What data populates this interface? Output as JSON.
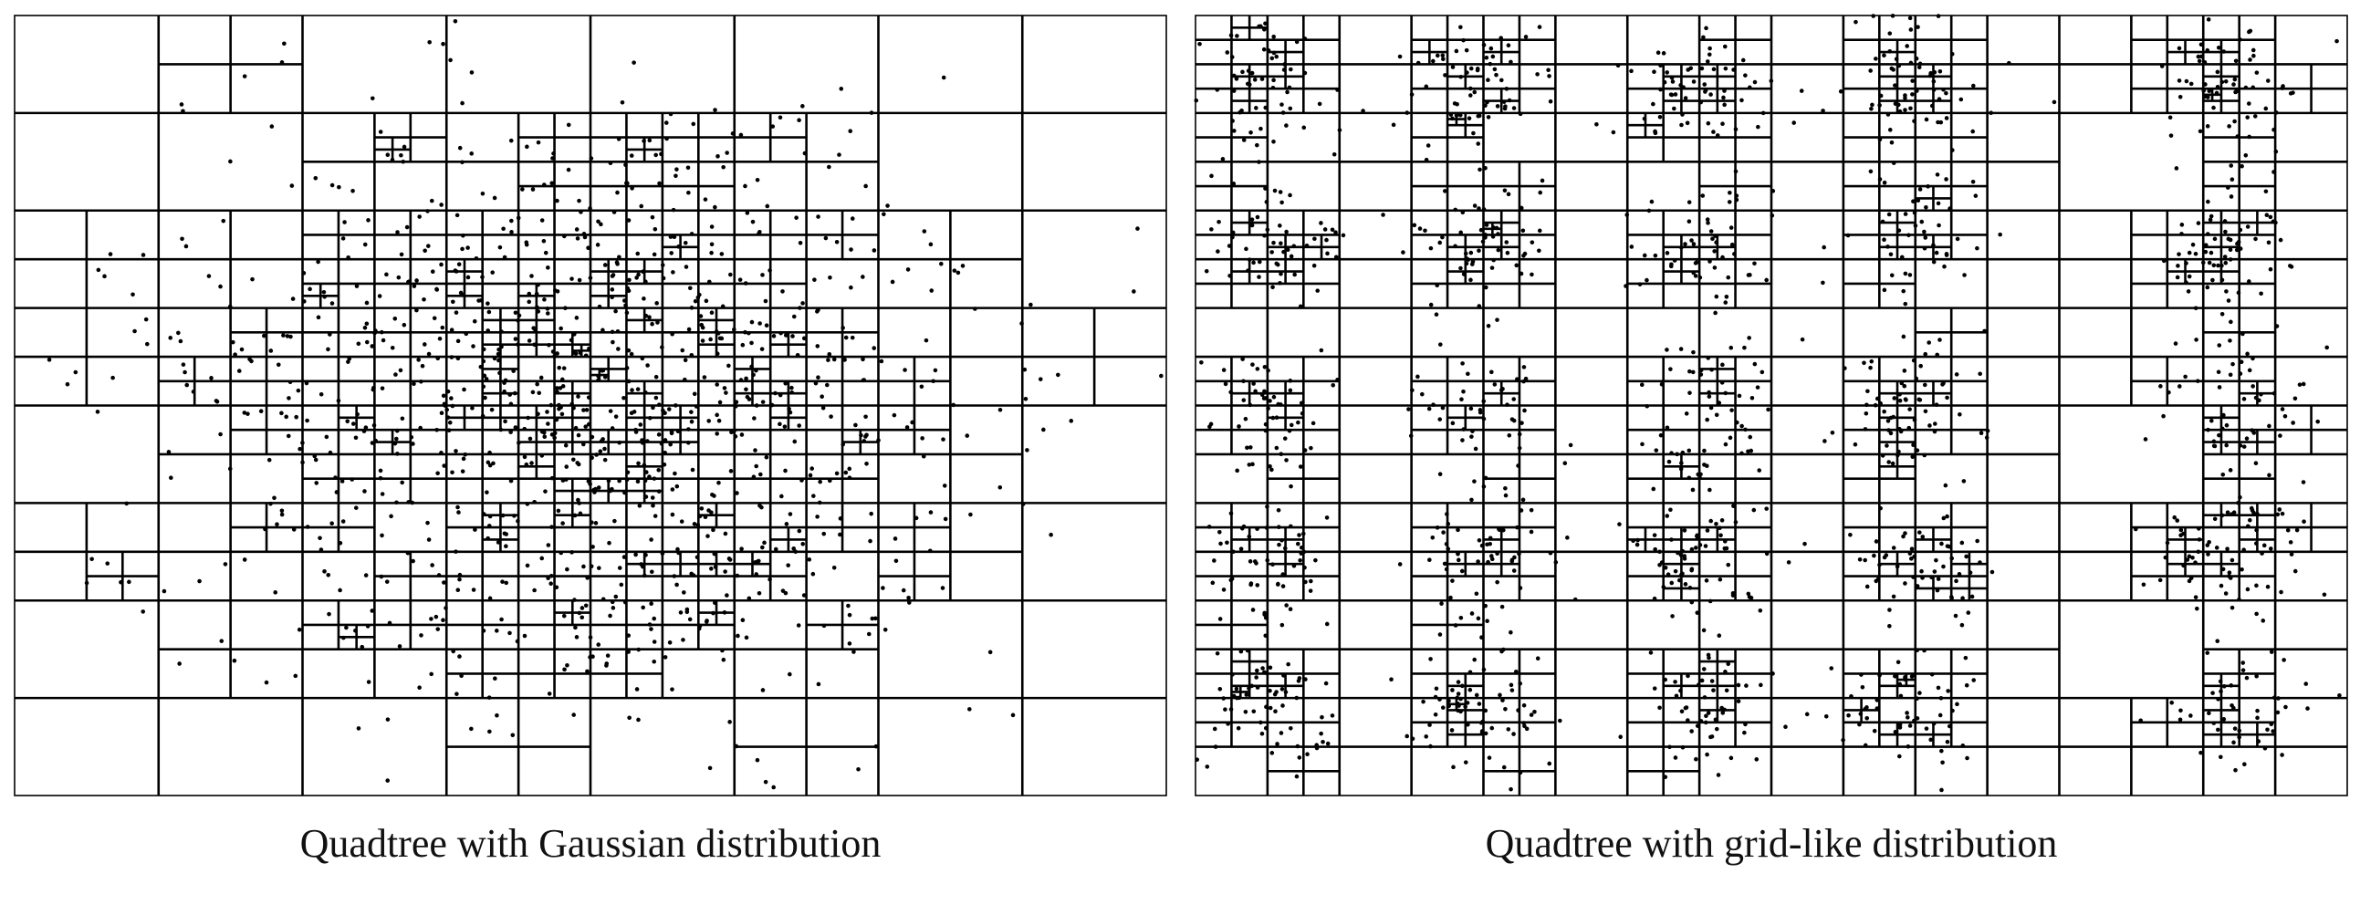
{
  "panels": [
    {
      "caption": "Quadtree with Gaussian distribution",
      "distribution": "gaussian"
    },
    {
      "caption": "Quadtree with grid-like distribution",
      "distribution": "grid-like"
    }
  ],
  "colors": {
    "lines": "#000000",
    "points": "#000000",
    "background": "#ffffff"
  }
}
